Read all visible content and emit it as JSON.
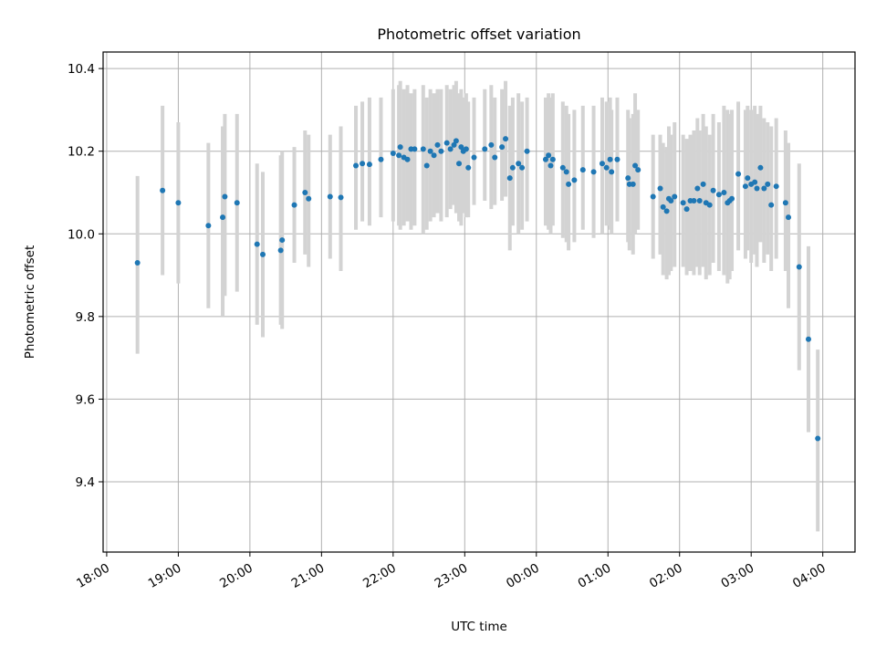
{
  "chart_data": {
    "type": "scatter",
    "title": "Photometric offset variation",
    "xlabel": "UTC time",
    "ylabel": "Photometric offset",
    "x_unit": "hours since 18:00 UTC",
    "xlim": [
      -0.05,
      10.45
    ],
    "ylim": [
      9.23,
      10.44
    ],
    "xticks": [
      0,
      1,
      2,
      3,
      4,
      5,
      6,
      7,
      8,
      9,
      10
    ],
    "xtick_labels": [
      "18:00",
      "19:00",
      "20:00",
      "21:00",
      "22:00",
      "23:00",
      "00:00",
      "01:00",
      "02:00",
      "03:00",
      "04:00"
    ],
    "yticks": [
      9.4,
      9.6,
      9.8,
      10.0,
      10.2,
      10.4
    ],
    "ytick_labels": [
      "9.4",
      "9.6",
      "9.8",
      "10.0",
      "10.2",
      "10.4"
    ],
    "grid": true,
    "colors": {
      "points": "#1f77b4",
      "errorbars": "#d3d3d3",
      "grid": "#b0b0b0"
    },
    "series": [
      {
        "name": "offset",
        "x": [
          0.43,
          0.78,
          1.0,
          1.42,
          1.62,
          1.65,
          1.82,
          2.1,
          2.18,
          2.43,
          2.45,
          2.62,
          2.77,
          2.82,
          3.12,
          3.27,
          3.48,
          3.57,
          3.67,
          3.83,
          4.0,
          4.08,
          4.1,
          4.15,
          4.2,
          4.25,
          4.3,
          4.42,
          4.47,
          4.52,
          4.57,
          4.62,
          4.67,
          4.75,
          4.8,
          4.85,
          4.88,
          4.92,
          4.95,
          4.98,
          5.02,
          5.05,
          5.13,
          5.28,
          5.37,
          5.42,
          5.52,
          5.57,
          5.63,
          5.67,
          5.75,
          5.8,
          5.87,
          6.13,
          6.17,
          6.2,
          6.23,
          6.37,
          6.42,
          6.45,
          6.53,
          6.65,
          6.8,
          6.92,
          6.98,
          7.03,
          7.05,
          7.13,
          7.28,
          7.3,
          7.35,
          7.38,
          7.42,
          7.63,
          7.73,
          7.77,
          7.82,
          7.85,
          7.88,
          7.93,
          8.05,
          8.1,
          8.15,
          8.2,
          8.25,
          8.28,
          8.33,
          8.37,
          8.42,
          8.47,
          8.55,
          8.62,
          8.67,
          8.7,
          8.73,
          8.82,
          8.92,
          8.95,
          9.0,
          9.05,
          9.08,
          9.13,
          9.18,
          9.23,
          9.28,
          9.35,
          9.48,
          9.52,
          9.67,
          9.8,
          9.93
        ],
        "y": [
          9.93,
          10.105,
          10.075,
          10.02,
          10.04,
          10.09,
          10.075,
          9.975,
          9.95,
          9.96,
          9.985,
          10.07,
          10.1,
          10.085,
          10.09,
          10.088,
          10.165,
          10.17,
          10.168,
          10.18,
          10.195,
          10.19,
          10.21,
          10.185,
          10.18,
          10.205,
          10.205,
          10.205,
          10.165,
          10.2,
          10.19,
          10.215,
          10.2,
          10.22,
          10.205,
          10.215,
          10.225,
          10.17,
          10.21,
          10.2,
          10.205,
          10.16,
          10.185,
          10.205,
          10.215,
          10.185,
          10.21,
          10.23,
          10.135,
          10.16,
          10.17,
          10.16,
          10.2,
          10.18,
          10.19,
          10.165,
          10.18,
          10.16,
          10.15,
          10.12,
          10.13,
          10.155,
          10.15,
          10.17,
          10.16,
          10.18,
          10.15,
          10.18,
          10.135,
          10.12,
          10.12,
          10.165,
          10.155,
          10.09,
          10.11,
          10.065,
          10.055,
          10.085,
          10.08,
          10.09,
          10.075,
          10.06,
          10.08,
          10.08,
          10.11,
          10.08,
          10.12,
          10.075,
          10.07,
          10.105,
          10.095,
          10.1,
          10.075,
          10.08,
          10.085,
          10.145,
          10.115,
          10.135,
          10.12,
          10.125,
          10.11,
          10.16,
          10.11,
          10.12,
          10.07,
          10.115,
          10.075,
          10.04,
          9.92,
          9.745,
          9.505
        ],
        "yerr_low": [
          9.71,
          9.9,
          9.88,
          9.82,
          9.8,
          9.85,
          9.86,
          9.78,
          9.75,
          9.78,
          9.77,
          9.93,
          9.95,
          9.92,
          9.94,
          9.91,
          10.01,
          10.03,
          10.02,
          10.04,
          10.03,
          10.02,
          10.01,
          10.02,
          10.03,
          10.01,
          10.02,
          10.0,
          10.01,
          10.03,
          10.04,
          10.05,
          10.03,
          10.04,
          10.06,
          10.07,
          10.05,
          10.03,
          10.02,
          10.05,
          10.04,
          10.04,
          10.07,
          10.08,
          10.06,
          10.07,
          10.08,
          10.09,
          9.96,
          10.02,
          10.0,
          10.01,
          10.03,
          10.02,
          10.01,
          10.0,
          10.02,
          9.99,
          9.98,
          9.96,
          9.98,
          10.01,
          9.99,
          10.0,
          10.02,
          10.01,
          10.0,
          10.03,
          9.98,
          9.96,
          9.95,
          10.0,
          10.01,
          9.94,
          9.95,
          9.9,
          9.89,
          9.9,
          9.91,
          9.92,
          9.92,
          9.9,
          9.91,
          9.9,
          9.92,
          9.9,
          9.92,
          9.89,
          9.9,
          9.93,
          9.91,
          9.9,
          9.88,
          9.89,
          9.91,
          9.96,
          9.94,
          9.96,
          9.93,
          9.95,
          9.92,
          9.98,
          9.93,
          9.95,
          9.91,
          9.94,
          9.91,
          9.82,
          9.67,
          9.52,
          9.28
        ],
        "yerr_high": [
          10.14,
          10.31,
          10.27,
          10.22,
          10.26,
          10.29,
          10.29,
          10.17,
          10.15,
          10.19,
          10.2,
          10.21,
          10.25,
          10.24,
          10.24,
          10.26,
          10.31,
          10.32,
          10.33,
          10.33,
          10.35,
          10.36,
          10.37,
          10.35,
          10.36,
          10.34,
          10.35,
          10.36,
          10.33,
          10.35,
          10.34,
          10.35,
          10.35,
          10.36,
          10.35,
          10.36,
          10.37,
          10.34,
          10.35,
          10.33,
          10.34,
          10.32,
          10.33,
          10.35,
          10.36,
          10.33,
          10.35,
          10.37,
          10.31,
          10.33,
          10.34,
          10.32,
          10.33,
          10.33,
          10.34,
          10.33,
          10.34,
          10.32,
          10.31,
          10.29,
          10.3,
          10.31,
          10.31,
          10.33,
          10.32,
          10.33,
          10.3,
          10.33,
          10.3,
          10.28,
          10.29,
          10.34,
          10.3,
          10.24,
          10.24,
          10.22,
          10.21,
          10.26,
          10.24,
          10.27,
          10.24,
          10.23,
          10.24,
          10.25,
          10.28,
          10.25,
          10.29,
          10.26,
          10.24,
          10.29,
          10.27,
          10.31,
          10.3,
          10.29,
          10.3,
          10.32,
          10.3,
          10.31,
          10.3,
          10.31,
          10.29,
          10.31,
          10.28,
          10.27,
          10.26,
          10.28,
          10.25,
          10.22,
          10.17,
          9.97,
          9.72
        ]
      }
    ]
  }
}
